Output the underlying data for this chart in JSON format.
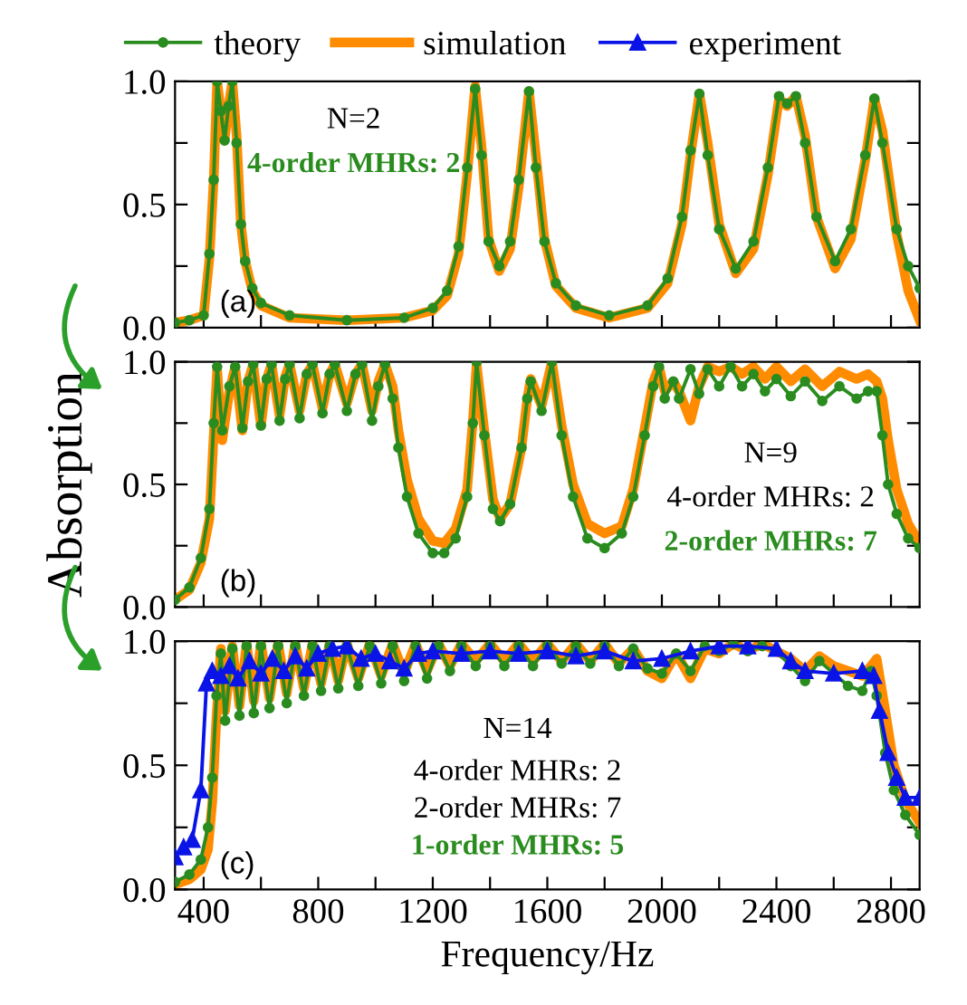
{
  "chart_data": [
    {
      "type": "line",
      "xlim": [
        300,
        2900
      ],
      "ylim": [
        0.0,
        1.0
      ],
      "xticks": [
        {
          "value": 400,
          "label": null
        },
        {
          "value": 600,
          "label": null
        },
        {
          "value": 800,
          "label": null
        },
        {
          "value": 1000,
          "label": null
        },
        {
          "value": 1200,
          "label": null
        },
        {
          "value": 1400,
          "label": null
        },
        {
          "value": 1600,
          "label": null
        },
        {
          "value": 1800,
          "label": null
        },
        {
          "value": 2000,
          "label": null
        },
        {
          "value": 2200,
          "label": null
        },
        {
          "value": 2400,
          "label": null
        },
        {
          "value": 2600,
          "label": null
        },
        {
          "value": 2800,
          "label": null
        }
      ],
      "yticks": [
        {
          "value": 0.0,
          "label": "0.0"
        },
        {
          "value": 0.25,
          "label": null
        },
        {
          "value": 0.5,
          "label": "0.5"
        },
        {
          "value": 0.75,
          "label": null
        },
        {
          "value": 1.0,
          "label": "1.0"
        }
      ],
      "tick_labels": "y",
      "grid": false,
      "legend": "top",
      "annotations": [
        "(a)",
        "N=2",
        "4-order MHRs: 2"
      ],
      "series": [
        {
          "name": "simulation",
          "color": "#ff8c00",
          "marker": "none",
          "x": [
            300,
            350,
            400,
            420,
            435,
            447,
            460,
            473,
            487,
            500,
            515,
            530,
            545,
            570,
            600,
            700,
            900,
            1100,
            1200,
            1250,
            1290,
            1320,
            1348,
            1370,
            1395,
            1432,
            1470,
            1500,
            1536,
            1560,
            1590,
            1630,
            1700,
            1816,
            1950,
            2020,
            2070,
            2100,
            2131,
            2160,
            2200,
            2258,
            2320,
            2370,
            2409,
            2437,
            2468,
            2500,
            2540,
            2605,
            2660,
            2710,
            2742,
            2770,
            2820,
            2860,
            2900
          ],
          "values": [
            0.02,
            0.03,
            0.05,
            0.28,
            0.6,
            1.0,
            0.88,
            0.76,
            0.9,
            1.0,
            0.78,
            0.42,
            0.27,
            0.15,
            0.09,
            0.04,
            0.03,
            0.04,
            0.07,
            0.13,
            0.3,
            0.62,
            0.98,
            0.74,
            0.36,
            0.23,
            0.32,
            0.57,
            0.96,
            0.7,
            0.36,
            0.17,
            0.08,
            0.04,
            0.08,
            0.18,
            0.42,
            0.7,
            0.95,
            0.75,
            0.42,
            0.22,
            0.32,
            0.62,
            0.93,
            0.9,
            0.94,
            0.78,
            0.45,
            0.24,
            0.36,
            0.68,
            0.93,
            0.8,
            0.38,
            0.15,
            0.03
          ]
        },
        {
          "name": "theory",
          "color": "#2a8c1f",
          "marker": "circle",
          "x": [
            300,
            350,
            400,
            420,
            435,
            447,
            460,
            473,
            487,
            500,
            515,
            530,
            545,
            570,
            600,
            700,
            900,
            1100,
            1200,
            1250,
            1290,
            1320,
            1348,
            1370,
            1395,
            1432,
            1470,
            1500,
            1536,
            1560,
            1590,
            1630,
            1700,
            1816,
            1950,
            2020,
            2070,
            2100,
            2131,
            2160,
            2200,
            2258,
            2320,
            2370,
            2409,
            2437,
            2468,
            2500,
            2540,
            2605,
            2660,
            2710,
            2742,
            2770,
            2820,
            2860,
            2900
          ],
          "values": [
            0.02,
            0.03,
            0.05,
            0.3,
            0.6,
            1.0,
            0.88,
            0.76,
            0.9,
            1.0,
            0.75,
            0.42,
            0.27,
            0.16,
            0.1,
            0.05,
            0.03,
            0.04,
            0.08,
            0.15,
            0.33,
            0.65,
            0.97,
            0.7,
            0.35,
            0.25,
            0.35,
            0.6,
            0.96,
            0.65,
            0.35,
            0.18,
            0.09,
            0.05,
            0.09,
            0.2,
            0.45,
            0.72,
            0.95,
            0.7,
            0.4,
            0.24,
            0.35,
            0.65,
            0.94,
            0.91,
            0.94,
            0.75,
            0.45,
            0.27,
            0.4,
            0.7,
            0.93,
            0.75,
            0.4,
            0.25,
            0.16
          ]
        }
      ]
    },
    {
      "type": "line",
      "xlim": [
        300,
        2900
      ],
      "ylim": [
        0.0,
        1.0
      ],
      "ylabel": "Absorption",
      "xticks": [
        {
          "value": 400,
          "label": null
        },
        {
          "value": 600,
          "label": null
        },
        {
          "value": 800,
          "label": null
        },
        {
          "value": 1000,
          "label": null
        },
        {
          "value": 1200,
          "label": null
        },
        {
          "value": 1400,
          "label": null
        },
        {
          "value": 1600,
          "label": null
        },
        {
          "value": 1800,
          "label": null
        },
        {
          "value": 2000,
          "label": null
        },
        {
          "value": 2200,
          "label": null
        },
        {
          "value": 2400,
          "label": null
        },
        {
          "value": 2600,
          "label": null
        },
        {
          "value": 2800,
          "label": null
        }
      ],
      "yticks": [
        {
          "value": 0.0,
          "label": "0.0"
        },
        {
          "value": 0.25,
          "label": null
        },
        {
          "value": 0.5,
          "label": "0.5"
        },
        {
          "value": 0.75,
          "label": null
        },
        {
          "value": 1.0,
          "label": "1.0"
        }
      ],
      "tick_labels": "y",
      "grid": false,
      "annotations": [
        "(b)",
        "N=9",
        "4-order MHRs: 2",
        "2-order MHRs: 7"
      ],
      "series": [
        {
          "name": "simulation",
          "color": "#ff8c00",
          "marker": "none",
          "x": [
            300,
            350,
            390,
            420,
            435,
            447,
            465,
            490,
            510,
            535,
            555,
            573,
            600,
            620,
            637,
            665,
            685,
            700,
            735,
            760,
            780,
            815,
            840,
            858,
            900,
            930,
            953,
            988,
            1010,
            1033,
            1060,
            1080,
            1110,
            1150,
            1200,
            1240,
            1280,
            1320,
            1340,
            1353,
            1380,
            1410,
            1435,
            1470,
            1510,
            1530,
            1542,
            1580,
            1616,
            1650,
            1690,
            1740,
            1800,
            1860,
            1900,
            1940,
            1970,
            1990,
            2010,
            2040,
            2060,
            2100,
            2130,
            2160,
            2200,
            2240,
            2280,
            2320,
            2360,
            2400,
            2450,
            2500,
            2560,
            2620,
            2680,
            2720,
            2750,
            2770,
            2790,
            2820,
            2860,
            2900
          ],
          "values": [
            0.03,
            0.07,
            0.18,
            0.36,
            0.7,
            0.97,
            0.68,
            0.88,
            0.98,
            0.72,
            0.92,
            0.99,
            0.74,
            0.93,
            0.99,
            0.78,
            0.94,
            0.99,
            0.8,
            0.95,
            0.99,
            0.81,
            0.95,
            0.99,
            0.83,
            0.95,
            0.99,
            0.8,
            0.92,
            0.99,
            0.9,
            0.72,
            0.52,
            0.36,
            0.27,
            0.26,
            0.32,
            0.48,
            0.76,
            0.99,
            0.72,
            0.44,
            0.36,
            0.42,
            0.65,
            0.85,
            0.93,
            0.82,
            1.0,
            0.74,
            0.5,
            0.34,
            0.3,
            0.33,
            0.48,
            0.73,
            0.92,
            0.98,
            0.88,
            0.92,
            0.88,
            0.76,
            0.9,
            0.98,
            0.96,
            0.98,
            0.95,
            0.98,
            0.93,
            0.98,
            0.92,
            0.97,
            0.9,
            0.96,
            0.93,
            0.95,
            0.92,
            0.85,
            0.68,
            0.48,
            0.34,
            0.26
          ]
        },
        {
          "name": "theory",
          "color": "#2a8c1f",
          "marker": "circle",
          "x": [
            300,
            350,
            390,
            420,
            435,
            447,
            465,
            490,
            510,
            535,
            555,
            573,
            600,
            620,
            637,
            665,
            685,
            700,
            735,
            760,
            780,
            815,
            840,
            858,
            900,
            930,
            953,
            988,
            1010,
            1033,
            1060,
            1080,
            1110,
            1150,
            1200,
            1240,
            1280,
            1320,
            1340,
            1353,
            1380,
            1410,
            1435,
            1470,
            1510,
            1530,
            1542,
            1580,
            1616,
            1650,
            1690,
            1740,
            1800,
            1860,
            1900,
            1940,
            1970,
            1990,
            2010,
            2040,
            2060,
            2100,
            2130,
            2160,
            2200,
            2240,
            2280,
            2320,
            2360,
            2400,
            2450,
            2500,
            2560,
            2620,
            2680,
            2720,
            2750,
            2770,
            2790,
            2820,
            2860,
            2900
          ],
          "values": [
            0.03,
            0.08,
            0.2,
            0.4,
            0.75,
            0.98,
            0.72,
            0.9,
            0.98,
            0.73,
            0.92,
            0.99,
            0.74,
            0.93,
            0.99,
            0.76,
            0.93,
            0.99,
            0.77,
            0.95,
            0.99,
            0.79,
            0.95,
            0.99,
            0.8,
            0.95,
            0.99,
            0.76,
            0.9,
            0.99,
            0.85,
            0.65,
            0.45,
            0.3,
            0.22,
            0.22,
            0.28,
            0.45,
            0.75,
            1.0,
            0.7,
            0.4,
            0.35,
            0.42,
            0.65,
            0.85,
            0.92,
            0.8,
            1.0,
            0.7,
            0.45,
            0.28,
            0.24,
            0.3,
            0.45,
            0.7,
            0.9,
            0.98,
            0.85,
            0.92,
            0.85,
            0.97,
            0.87,
            0.97,
            0.9,
            0.98,
            0.9,
            0.95,
            0.88,
            0.93,
            0.86,
            0.92,
            0.84,
            0.9,
            0.85,
            0.88,
            0.88,
            0.7,
            0.5,
            0.38,
            0.28,
            0.24
          ]
        }
      ]
    },
    {
      "type": "line",
      "xlim": [
        300,
        2900
      ],
      "ylim": [
        0.0,
        1.0
      ],
      "xlabel": "Frequency/Hz",
      "xticks": [
        400,
        {
          "value": 600,
          "label": null
        },
        800,
        {
          "value": 1000,
          "label": null
        },
        1200,
        {
          "value": 1400,
          "label": null
        },
        1600,
        {
          "value": 1800,
          "label": null
        },
        2000,
        {
          "value": 2200,
          "label": null
        },
        2400,
        {
          "value": 2600,
          "label": null
        },
        2800
      ],
      "yticks": [
        {
          "value": 0.0,
          "label": "0.0"
        },
        {
          "value": 0.25,
          "label": null
        },
        {
          "value": 0.5,
          "label": "0.5"
        },
        {
          "value": 0.75,
          "label": null
        },
        {
          "value": 1.0,
          "label": "1.0"
        }
      ],
      "grid": false,
      "annotations": [
        "(c)",
        "N=14",
        "4-order MHRs: 2",
        "2-order MHRs: 7",
        "1-order MHRs: 5"
      ],
      "series": [
        {
          "name": "simulation",
          "color": "#ff8c00",
          "marker": "none",
          "x": [
            300,
            350,
            390,
            415,
            430,
            445,
            460,
            475,
            500,
            525,
            550,
            575,
            600,
            630,
            660,
            690,
            720,
            750,
            780,
            810,
            840,
            870,
            900,
            940,
            980,
            1020,
            1060,
            1100,
            1140,
            1180,
            1220,
            1260,
            1300,
            1350,
            1400,
            1450,
            1500,
            1550,
            1600,
            1650,
            1700,
            1750,
            1800,
            1850,
            1900,
            1950,
            2000,
            2050,
            2100,
            2150,
            2200,
            2250,
            2300,
            2350,
            2400,
            2450,
            2500,
            2550,
            2600,
            2650,
            2700,
            2730,
            2750,
            2780,
            2810,
            2850,
            2900
          ],
          "values": [
            0.02,
            0.04,
            0.08,
            0.16,
            0.35,
            0.7,
            0.97,
            0.72,
            0.98,
            0.74,
            0.99,
            0.76,
            0.99,
            0.77,
            0.99,
            0.79,
            0.99,
            0.81,
            0.99,
            0.83,
            0.99,
            0.84,
            0.99,
            0.85,
            0.99,
            0.86,
            0.99,
            0.87,
            0.99,
            0.88,
            0.99,
            0.9,
            0.99,
            0.92,
            0.99,
            0.92,
            0.99,
            0.92,
            0.99,
            0.92,
            0.99,
            0.92,
            0.99,
            0.91,
            0.97,
            0.88,
            0.85,
            0.95,
            0.85,
            0.97,
            0.95,
            0.99,
            0.96,
            0.99,
            0.96,
            0.93,
            0.88,
            0.94,
            0.9,
            0.88,
            0.86,
            0.9,
            0.93,
            0.72,
            0.5,
            0.36,
            0.27
          ]
        },
        {
          "name": "theory",
          "color": "#2a8c1f",
          "marker": "circle",
          "x": [
            300,
            350,
            390,
            415,
            430,
            445,
            460,
            475,
            500,
            525,
            550,
            575,
            600,
            630,
            660,
            690,
            720,
            750,
            780,
            810,
            840,
            870,
            900,
            940,
            980,
            1020,
            1060,
            1100,
            1140,
            1180,
            1220,
            1260,
            1300,
            1350,
            1400,
            1450,
            1500,
            1550,
            1600,
            1650,
            1700,
            1750,
            1800,
            1850,
            1900,
            1950,
            2000,
            2050,
            2100,
            2150,
            2200,
            2250,
            2300,
            2350,
            2400,
            2450,
            2500,
            2550,
            2600,
            2650,
            2700,
            2730,
            2750,
            2780,
            2810,
            2850,
            2900
          ],
          "values": [
            0.03,
            0.06,
            0.12,
            0.25,
            0.45,
            0.78,
            0.95,
            0.68,
            0.97,
            0.7,
            0.98,
            0.71,
            0.98,
            0.73,
            0.98,
            0.75,
            0.98,
            0.78,
            0.98,
            0.8,
            0.98,
            0.81,
            0.98,
            0.82,
            0.98,
            0.83,
            0.98,
            0.84,
            0.98,
            0.85,
            0.98,
            0.88,
            0.98,
            0.9,
            0.98,
            0.9,
            0.98,
            0.9,
            0.98,
            0.91,
            0.98,
            0.91,
            0.98,
            0.9,
            0.97,
            0.89,
            0.87,
            0.95,
            0.88,
            0.98,
            0.96,
            0.99,
            0.96,
            0.98,
            0.96,
            0.9,
            0.84,
            0.92,
            0.87,
            0.82,
            0.8,
            0.88,
            0.78,
            0.55,
            0.4,
            0.3,
            0.22
          ]
        },
        {
          "name": "experiment",
          "color": "#0a14e6",
          "marker": "triangle",
          "x": [
            300,
            330,
            360,
            390,
            410,
            430,
            460,
            490,
            520,
            560,
            600,
            640,
            680,
            720,
            760,
            800,
            850,
            900,
            950,
            1000,
            1050,
            1100,
            1150,
            1200,
            1300,
            1400,
            1500,
            1600,
            1700,
            1800,
            1900,
            2000,
            2100,
            2200,
            2300,
            2400,
            2450,
            2500,
            2600,
            2700,
            2740,
            2760,
            2790,
            2820,
            2850,
            2900
          ],
          "values": [
            0.13,
            0.17,
            0.2,
            0.4,
            0.83,
            0.88,
            0.86,
            0.9,
            0.85,
            0.92,
            0.87,
            0.93,
            0.88,
            0.94,
            0.89,
            0.95,
            0.97,
            0.98,
            0.93,
            0.95,
            0.92,
            0.89,
            0.95,
            0.96,
            0.95,
            0.96,
            0.95,
            0.96,
            0.94,
            0.96,
            0.92,
            0.93,
            0.96,
            0.98,
            0.98,
            0.97,
            0.92,
            0.88,
            0.87,
            0.88,
            0.86,
            0.72,
            0.55,
            0.45,
            0.37,
            0.37
          ]
        }
      ]
    }
  ]
}
